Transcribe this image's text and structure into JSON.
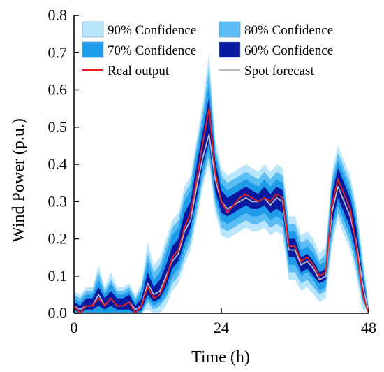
{
  "chart_data": {
    "type": "area",
    "xlabel": "Time (h)",
    "ylabel": "Wind Power (p.u.)",
    "xlim": [
      0,
      48
    ],
    "ylim": [
      0,
      0.8
    ],
    "xticks": [
      0,
      24,
      48
    ],
    "xtick_labels": [
      "0",
      "24",
      "48"
    ],
    "yticks": [
      0.0,
      0.1,
      0.2,
      0.3,
      0.4,
      0.5,
      0.6,
      0.7,
      0.8
    ],
    "ytick_labels": [
      "0.0",
      "0.1",
      "0.2",
      "0.3",
      "0.4",
      "0.5",
      "0.6",
      "0.7",
      "0.8"
    ],
    "grid": false,
    "legend_placement": "top",
    "x": [
      0,
      1,
      2,
      3,
      4,
      5,
      6,
      7,
      8,
      9,
      10,
      11,
      12,
      13,
      14,
      15,
      16,
      17,
      18,
      19,
      20,
      21,
      22,
      23,
      24,
      25,
      26,
      27,
      28,
      29,
      30,
      31,
      32,
      33,
      34,
      35,
      36,
      37,
      38,
      39,
      40,
      41,
      42,
      43,
      44,
      45,
      46,
      47,
      48
    ],
    "series": [
      {
        "name": "Spot forecast",
        "color": "#b8b8c0",
        "values": [
          0.02,
          0.01,
          0.02,
          0.02,
          0.05,
          0.02,
          0.04,
          0.02,
          0.02,
          0.03,
          0.01,
          0.02,
          0.08,
          0.05,
          0.06,
          0.1,
          0.14,
          0.16,
          0.22,
          0.25,
          0.34,
          0.42,
          0.48,
          0.36,
          0.3,
          0.28,
          0.29,
          0.3,
          0.31,
          0.3,
          0.3,
          0.31,
          0.29,
          0.31,
          0.3,
          0.17,
          0.17,
          0.13,
          0.14,
          0.12,
          0.09,
          0.1,
          0.27,
          0.34,
          0.3,
          0.26,
          0.19,
          0.08,
          0.0
        ]
      },
      {
        "name": "Real output",
        "color": "#e8201c",
        "values": [
          0.02,
          0.0,
          0.02,
          0.02,
          0.04,
          0.02,
          0.04,
          0.02,
          0.02,
          0.03,
          0.0,
          0.02,
          0.07,
          0.04,
          0.05,
          0.09,
          0.15,
          0.17,
          0.23,
          0.27,
          0.36,
          0.46,
          0.55,
          0.38,
          0.3,
          0.27,
          0.29,
          0.31,
          0.32,
          0.31,
          0.3,
          0.31,
          0.3,
          0.32,
          0.31,
          0.18,
          0.18,
          0.14,
          0.15,
          0.13,
          0.1,
          0.11,
          0.29,
          0.36,
          0.32,
          0.28,
          0.18,
          0.05,
          0.0
        ]
      }
    ],
    "bands": [
      {
        "name": "90% Confidence",
        "color": "#b9e6fb",
        "lower": [
          0.0,
          0.0,
          0.0,
          0.0,
          0.0,
          0.0,
          0.0,
          0.0,
          0.0,
          0.0,
          0.0,
          0.0,
          0.01,
          0.0,
          0.0,
          0.02,
          0.06,
          0.08,
          0.13,
          0.17,
          0.25,
          0.34,
          0.4,
          0.27,
          0.21,
          0.2,
          0.21,
          0.22,
          0.23,
          0.22,
          0.22,
          0.23,
          0.21,
          0.22,
          0.21,
          0.09,
          0.09,
          0.06,
          0.07,
          0.05,
          0.03,
          0.04,
          0.18,
          0.25,
          0.21,
          0.17,
          0.1,
          0.01,
          0.0
        ],
        "upper": [
          0.06,
          0.05,
          0.07,
          0.07,
          0.13,
          0.07,
          0.11,
          0.07,
          0.07,
          0.08,
          0.05,
          0.08,
          0.19,
          0.13,
          0.15,
          0.2,
          0.25,
          0.27,
          0.34,
          0.37,
          0.47,
          0.57,
          0.7,
          0.47,
          0.39,
          0.37,
          0.38,
          0.39,
          0.4,
          0.39,
          0.38,
          0.4,
          0.38,
          0.4,
          0.39,
          0.26,
          0.26,
          0.21,
          0.22,
          0.2,
          0.16,
          0.18,
          0.38,
          0.45,
          0.41,
          0.37,
          0.29,
          0.16,
          0.02
        ]
      },
      {
        "name": "80% Confidence",
        "color": "#5bbdf4",
        "lower": [
          0.0,
          0.0,
          0.0,
          0.0,
          0.0,
          0.0,
          0.0,
          0.0,
          0.0,
          0.0,
          0.0,
          0.0,
          0.03,
          0.01,
          0.02,
          0.04,
          0.08,
          0.1,
          0.15,
          0.19,
          0.27,
          0.36,
          0.42,
          0.29,
          0.23,
          0.22,
          0.23,
          0.24,
          0.25,
          0.24,
          0.24,
          0.25,
          0.23,
          0.24,
          0.23,
          0.11,
          0.11,
          0.08,
          0.09,
          0.07,
          0.05,
          0.06,
          0.2,
          0.27,
          0.23,
          0.19,
          0.12,
          0.03,
          0.0
        ],
        "upper": [
          0.05,
          0.04,
          0.06,
          0.06,
          0.11,
          0.06,
          0.09,
          0.06,
          0.06,
          0.07,
          0.04,
          0.07,
          0.16,
          0.11,
          0.13,
          0.18,
          0.23,
          0.25,
          0.32,
          0.35,
          0.45,
          0.54,
          0.66,
          0.45,
          0.37,
          0.35,
          0.36,
          0.37,
          0.38,
          0.37,
          0.36,
          0.38,
          0.36,
          0.38,
          0.37,
          0.24,
          0.24,
          0.19,
          0.2,
          0.18,
          0.14,
          0.16,
          0.36,
          0.43,
          0.39,
          0.35,
          0.27,
          0.14,
          0.015
        ]
      },
      {
        "name": "70% Confidence",
        "color": "#1e9cea",
        "lower": [
          0.0,
          0.0,
          0.0,
          0.0,
          0.0,
          0.0,
          0.0,
          0.0,
          0.0,
          0.0,
          0.0,
          0.0,
          0.04,
          0.02,
          0.03,
          0.05,
          0.1,
          0.12,
          0.17,
          0.21,
          0.29,
          0.38,
          0.44,
          0.31,
          0.25,
          0.24,
          0.25,
          0.26,
          0.27,
          0.26,
          0.26,
          0.27,
          0.25,
          0.26,
          0.25,
          0.13,
          0.13,
          0.1,
          0.11,
          0.09,
          0.06,
          0.07,
          0.22,
          0.29,
          0.25,
          0.21,
          0.14,
          0.04,
          0.0
        ],
        "upper": [
          0.04,
          0.03,
          0.05,
          0.05,
          0.09,
          0.05,
          0.08,
          0.05,
          0.05,
          0.06,
          0.03,
          0.06,
          0.14,
          0.09,
          0.11,
          0.16,
          0.21,
          0.23,
          0.3,
          0.33,
          0.43,
          0.52,
          0.62,
          0.43,
          0.35,
          0.33,
          0.34,
          0.35,
          0.36,
          0.35,
          0.34,
          0.36,
          0.34,
          0.36,
          0.35,
          0.22,
          0.22,
          0.17,
          0.18,
          0.16,
          0.13,
          0.14,
          0.34,
          0.41,
          0.37,
          0.33,
          0.25,
          0.12,
          0.01
        ]
      },
      {
        "name": "60% Confidence",
        "color": "#0a1aa0",
        "lower": [
          0.01,
          0.0,
          0.01,
          0.01,
          0.02,
          0.01,
          0.02,
          0.01,
          0.01,
          0.01,
          0.0,
          0.01,
          0.05,
          0.03,
          0.04,
          0.07,
          0.12,
          0.14,
          0.19,
          0.23,
          0.31,
          0.4,
          0.46,
          0.33,
          0.27,
          0.26,
          0.27,
          0.28,
          0.29,
          0.28,
          0.28,
          0.29,
          0.27,
          0.28,
          0.27,
          0.15,
          0.15,
          0.11,
          0.12,
          0.1,
          0.08,
          0.09,
          0.24,
          0.31,
          0.27,
          0.23,
          0.16,
          0.05,
          0.0
        ],
        "upper": [
          0.03,
          0.02,
          0.04,
          0.04,
          0.07,
          0.04,
          0.06,
          0.04,
          0.04,
          0.05,
          0.02,
          0.04,
          0.11,
          0.07,
          0.09,
          0.13,
          0.18,
          0.2,
          0.27,
          0.3,
          0.4,
          0.49,
          0.58,
          0.41,
          0.33,
          0.31,
          0.32,
          0.33,
          0.34,
          0.33,
          0.32,
          0.34,
          0.32,
          0.34,
          0.33,
          0.2,
          0.2,
          0.15,
          0.16,
          0.14,
          0.11,
          0.12,
          0.32,
          0.39,
          0.35,
          0.31,
          0.23,
          0.1,
          0.005
        ]
      }
    ],
    "legend": [
      {
        "label": "90% Confidence",
        "kind": "patch",
        "color": "#b9e6fb"
      },
      {
        "label": "80% Confidence",
        "kind": "patch",
        "color": "#5bbdf4"
      },
      {
        "label": "70% Confidence",
        "kind": "patch",
        "color": "#1e9cea"
      },
      {
        "label": "60% Confidence",
        "kind": "patch",
        "color": "#0a1aa0"
      },
      {
        "label": "Real output",
        "kind": "line",
        "color": "#e8201c"
      },
      {
        "label": "Spot forecast",
        "kind": "line",
        "color": "#b8b8c0"
      }
    ]
  }
}
